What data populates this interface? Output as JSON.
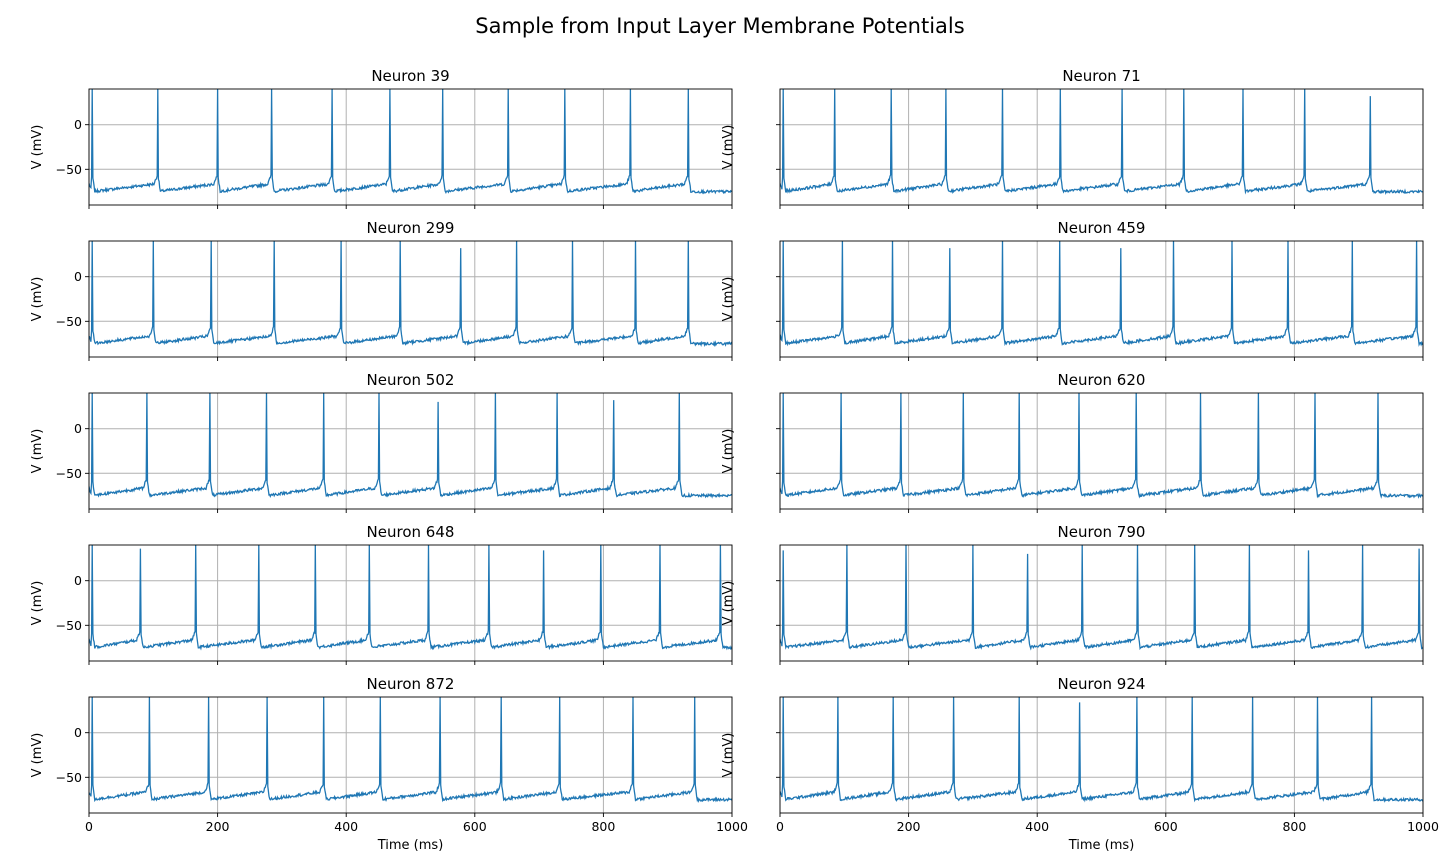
{
  "figure": {
    "suptitle": "Sample from Input Layer Membrane Potentials",
    "trace_color": "#1f77b4",
    "grid_color": "#b0b0b0"
  },
  "chart_data": [
    {
      "type": "line",
      "title": "Neuron 39",
      "xlabel": "",
      "ylabel": "V (mV)",
      "xlim": [
        0,
        1000
      ],
      "ylim": [
        -90,
        40
      ],
      "xticks": [
        0,
        200,
        400,
        600,
        800,
        1000
      ],
      "xtick_labels": [
        "",
        "",
        "",
        "",
        "",
        ""
      ],
      "yticks": [
        0,
        -50
      ],
      "ytick_labels": [
        "0",
        "−50"
      ],
      "grid": true,
      "series": [
        {
          "spike_times": [
            5,
            107,
            200,
            284,
            378,
            468,
            550,
            652,
            740,
            842,
            932
          ],
          "spike_peaks": [
            40,
            40,
            40,
            40,
            40,
            40,
            40,
            40,
            40,
            40,
            40
          ],
          "resting": -75,
          "threshold": -62
        }
      ]
    },
    {
      "type": "line",
      "title": "Neuron 71",
      "xlabel": "",
      "ylabel": "V (mV)",
      "xlim": [
        0,
        1000
      ],
      "ylim": [
        -90,
        40
      ],
      "xticks": [
        0,
        200,
        400,
        600,
        800,
        1000
      ],
      "xtick_labels": [
        "",
        "",
        "",
        "",
        "",
        ""
      ],
      "yticks": [
        0,
        -50
      ],
      "ytick_labels": [
        "",
        ""
      ],
      "grid": true,
      "series": [
        {
          "spike_times": [
            5,
            85,
            173,
            258,
            346,
            436,
            532,
            628,
            720,
            816,
            918
          ],
          "spike_peaks": [
            40,
            40,
            40,
            40,
            40,
            40,
            40,
            40,
            40,
            40,
            32
          ],
          "resting": -75,
          "threshold": -62
        }
      ]
    },
    {
      "type": "line",
      "title": "Neuron 299",
      "xlabel": "",
      "ylabel": "V (mV)",
      "xlim": [
        0,
        1000
      ],
      "ylim": [
        -90,
        40
      ],
      "xticks": [
        0,
        200,
        400,
        600,
        800,
        1000
      ],
      "xtick_labels": [
        "",
        "",
        "",
        "",
        "",
        ""
      ],
      "yticks": [
        0,
        -50
      ],
      "ytick_labels": [
        "0",
        "−50"
      ],
      "grid": true,
      "series": [
        {
          "spike_times": [
            5,
            100,
            190,
            288,
            392,
            484,
            578,
            665,
            752,
            850,
            932
          ],
          "spike_peaks": [
            40,
            40,
            40,
            40,
            40,
            40,
            32,
            40,
            40,
            40,
            40
          ],
          "resting": -75,
          "threshold": -62
        }
      ]
    },
    {
      "type": "line",
      "title": "Neuron 459",
      "xlabel": "",
      "ylabel": "V (mV)",
      "xlim": [
        0,
        1000
      ],
      "ylim": [
        -90,
        40
      ],
      "xticks": [
        0,
        200,
        400,
        600,
        800,
        1000
      ],
      "xtick_labels": [
        "",
        "",
        "",
        "",
        "",
        ""
      ],
      "yticks": [
        0,
        -50
      ],
      "ytick_labels": [
        "",
        ""
      ],
      "grid": true,
      "series": [
        {
          "spike_times": [
            5,
            97,
            175,
            264,
            346,
            435,
            530,
            612,
            703,
            790,
            890,
            990
          ],
          "spike_peaks": [
            40,
            40,
            40,
            32,
            40,
            40,
            32,
            40,
            40,
            40,
            40,
            40
          ],
          "resting": -75,
          "threshold": -62
        }
      ]
    },
    {
      "type": "line",
      "title": "Neuron 502",
      "xlabel": "",
      "ylabel": "V (mV)",
      "xlim": [
        0,
        1000
      ],
      "ylim": [
        -90,
        40
      ],
      "xticks": [
        0,
        200,
        400,
        600,
        800,
        1000
      ],
      "xtick_labels": [
        "",
        "",
        "",
        "",
        "",
        ""
      ],
      "yticks": [
        0,
        -50
      ],
      "ytick_labels": [
        "0",
        "−50"
      ],
      "grid": true,
      "series": [
        {
          "spike_times": [
            5,
            90,
            188,
            276,
            365,
            451,
            543,
            632,
            728,
            816,
            918
          ],
          "spike_peaks": [
            40,
            40,
            40,
            40,
            40,
            40,
            30,
            40,
            40,
            32,
            40
          ],
          "resting": -75,
          "threshold": -62
        }
      ]
    },
    {
      "type": "line",
      "title": "Neuron 620",
      "xlabel": "",
      "ylabel": "V (mV)",
      "xlim": [
        0,
        1000
      ],
      "ylim": [
        -90,
        40
      ],
      "xticks": [
        0,
        200,
        400,
        600,
        800,
        1000
      ],
      "xtick_labels": [
        "",
        "",
        "",
        "",
        "",
        ""
      ],
      "yticks": [
        0,
        -50
      ],
      "ytick_labels": [
        "",
        ""
      ],
      "grid": true,
      "series": [
        {
          "spike_times": [
            5,
            95,
            188,
            285,
            372,
            465,
            554,
            654,
            744,
            832,
            930
          ],
          "spike_peaks": [
            40,
            40,
            40,
            40,
            40,
            40,
            40,
            40,
            40,
            40,
            40
          ],
          "resting": -75,
          "threshold": -62
        }
      ]
    },
    {
      "type": "line",
      "title": "Neuron 648",
      "xlabel": "",
      "ylabel": "V (mV)",
      "xlim": [
        0,
        1000
      ],
      "ylim": [
        -90,
        40
      ],
      "xticks": [
        0,
        200,
        400,
        600,
        800,
        1000
      ],
      "xtick_labels": [
        "",
        "",
        "",
        "",
        "",
        ""
      ],
      "yticks": [
        0,
        -50
      ],
      "ytick_labels": [
        "0",
        "−50"
      ],
      "grid": true,
      "series": [
        {
          "spike_times": [
            5,
            80,
            166,
            264,
            352,
            436,
            528,
            622,
            707,
            796,
            888,
            982
          ],
          "spike_peaks": [
            40,
            36,
            40,
            40,
            40,
            40,
            40,
            40,
            34,
            40,
            40,
            40
          ],
          "resting": -75,
          "threshold": -62
        }
      ]
    },
    {
      "type": "line",
      "title": "Neuron 790",
      "xlabel": "",
      "ylabel": "V (mV)",
      "xlim": [
        0,
        1000
      ],
      "ylim": [
        -90,
        40
      ],
      "xticks": [
        0,
        200,
        400,
        600,
        800,
        1000
      ],
      "xtick_labels": [
        "",
        "",
        "",
        "",
        "",
        ""
      ],
      "yticks": [
        0,
        -50
      ],
      "ytick_labels": [
        "",
        ""
      ],
      "grid": true,
      "series": [
        {
          "spike_times": [
            5,
            104,
            196,
            300,
            385,
            470,
            556,
            645,
            730,
            822,
            906,
            994
          ],
          "spike_peaks": [
            34,
            40,
            40,
            40,
            30,
            40,
            40,
            40,
            40,
            34,
            40,
            36
          ],
          "resting": -75,
          "threshold": -62
        }
      ]
    },
    {
      "type": "line",
      "title": "Neuron 872",
      "xlabel": "Time (ms)",
      "ylabel": "V (mV)",
      "xlim": [
        0,
        1000
      ],
      "ylim": [
        -90,
        40
      ],
      "xticks": [
        0,
        200,
        400,
        600,
        800,
        1000
      ],
      "xtick_labels": [
        "0",
        "200",
        "400",
        "600",
        "800",
        "1000"
      ],
      "yticks": [
        0,
        -50
      ],
      "ytick_labels": [
        "0",
        "−50"
      ],
      "grid": true,
      "series": [
        {
          "spike_times": [
            5,
            94,
            186,
            277,
            365,
            453,
            546,
            641,
            732,
            846,
            942
          ],
          "spike_peaks": [
            40,
            40,
            40,
            40,
            40,
            40,
            40,
            40,
            40,
            40,
            40
          ],
          "resting": -75,
          "threshold": -62
        }
      ]
    },
    {
      "type": "line",
      "title": "Neuron 924",
      "xlabel": "Time (ms)",
      "ylabel": "V (mV)",
      "xlim": [
        0,
        1000
      ],
      "ylim": [
        -90,
        40
      ],
      "xticks": [
        0,
        200,
        400,
        600,
        800,
        1000
      ],
      "xtick_labels": [
        "0",
        "200",
        "400",
        "600",
        "800",
        "1000"
      ],
      "yticks": [
        0,
        -50
      ],
      "ytick_labels": [
        "",
        ""
      ],
      "grid": true,
      "series": [
        {
          "spike_times": [
            5,
            90,
            176,
            270,
            372,
            466,
            555,
            641,
            735,
            836,
            920
          ],
          "spike_peaks": [
            40,
            40,
            40,
            40,
            40,
            34,
            40,
            40,
            40,
            40,
            40
          ],
          "resting": -75,
          "threshold": -62
        }
      ]
    }
  ]
}
